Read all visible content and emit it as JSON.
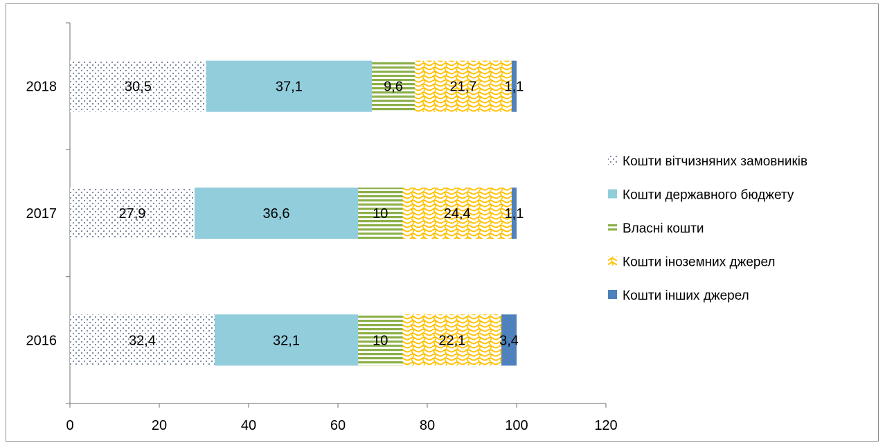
{
  "chart_data": {
    "type": "bar",
    "orientation": "horizontal",
    "stacked": true,
    "categories": [
      "2016",
      "2017",
      "2018"
    ],
    "series": [
      {
        "name": "Кошти вітчизняних замовників",
        "values": [
          32.4,
          27.9,
          30.5
        ],
        "labels": [
          "32,4",
          "27,9",
          "30,5"
        ],
        "color": "#1f3864",
        "pattern": "dots"
      },
      {
        "name": "Кошти державного бюджету",
        "values": [
          32.1,
          36.6,
          37.1
        ],
        "labels": [
          "32,1",
          "36,6",
          "37,1"
        ],
        "color": "#92cddc",
        "pattern": "solid"
      },
      {
        "name": "Власні кошти",
        "values": [
          10,
          10,
          9.6
        ],
        "labels": [
          "10",
          "10",
          "9,6"
        ],
        "color": "#8cb04a",
        "pattern": "horizontal-stripes"
      },
      {
        "name": "Кошти іноземних джерел",
        "values": [
          22.1,
          24.4,
          21.7
        ],
        "labels": [
          "22,1",
          "24,4",
          "21,7"
        ],
        "color": "#ffc000",
        "pattern": "waves"
      },
      {
        "name": "Кошти інших джерел",
        "values": [
          3.4,
          1.1,
          1.1
        ],
        "labels": [
          "3,4",
          "1,1",
          "1,1"
        ],
        "color": "#4f81bd",
        "pattern": "solid"
      }
    ],
    "xlim": [
      0,
      120
    ],
    "xticks": [
      "0",
      "20",
      "40",
      "60",
      "80",
      "100",
      "120"
    ],
    "xlabel": "",
    "ylabel": "",
    "title": "",
    "grid": false,
    "legend_position": "right"
  }
}
